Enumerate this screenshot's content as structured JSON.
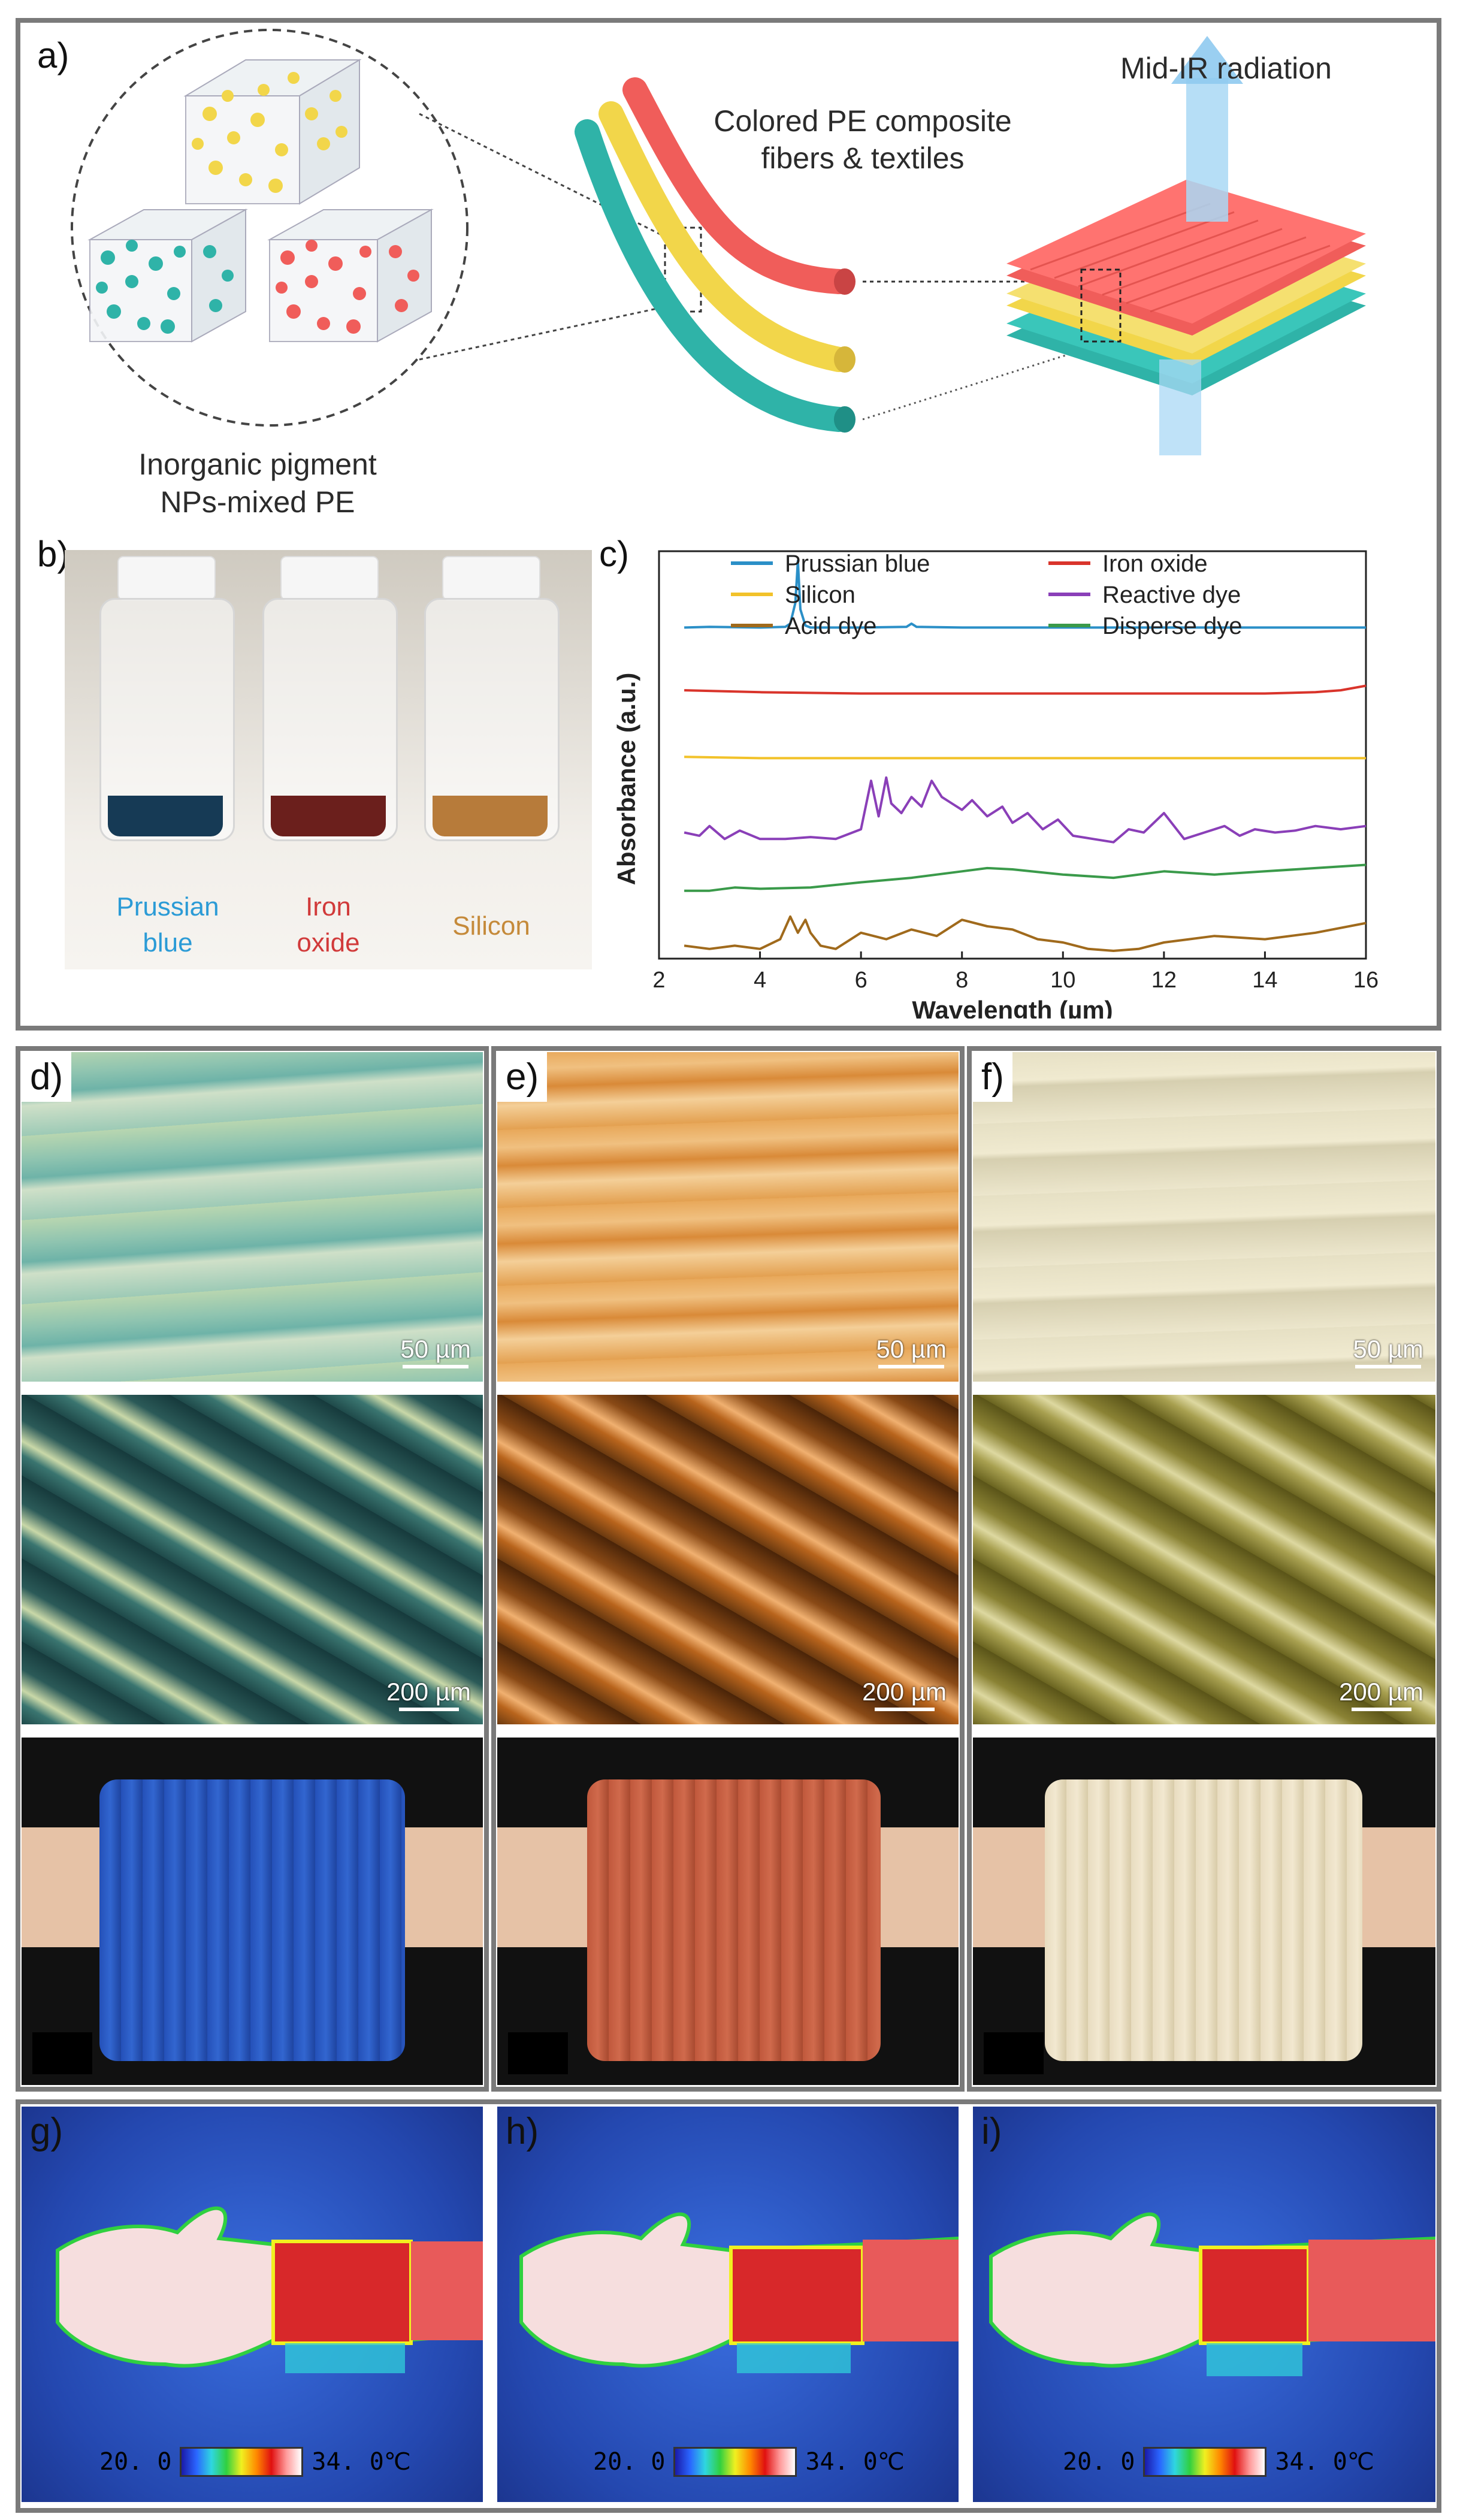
{
  "figure": {
    "panel_labels": [
      "a)",
      "b)",
      "c)",
      "d)",
      "e)",
      "f)",
      "g)",
      "h)",
      "i)"
    ],
    "panel_a": {
      "left_caption": [
        "Inorganic pigment",
        "NPs-mixed PE"
      ],
      "middle_caption": [
        "Colored PE composite",
        "fibers & textiles"
      ],
      "right_caption": "Mid-IR radiation",
      "colors": {
        "yellow": "#f2d64a",
        "teal": "#2fb3a8",
        "red": "#f05d5a"
      }
    },
    "panel_b": {
      "jars": [
        {
          "label": [
            "Prussian",
            "blue"
          ],
          "color": "#2b9bd6",
          "powder": "#163a55"
        },
        {
          "label": [
            "Iron",
            "oxide"
          ],
          "color": "#d13a3a",
          "powder": "#6b1f1c"
        },
        {
          "label": [
            "Silicon"
          ],
          "color": "#c58a3a",
          "powder": "#b77b3a"
        }
      ]
    },
    "scale_labels": {
      "micro": "50 µm",
      "macro": "200 µm"
    },
    "thermal": {
      "min_label": "20. 0",
      "max_label": "34. 0℃"
    }
  },
  "chart_data": {
    "type": "line",
    "title": "",
    "xlabel": "Wavelength (µm)",
    "ylabel": "Absorbance (a.u.)",
    "xlim": [
      2,
      16
    ],
    "x_ticks": [
      2,
      4,
      6,
      8,
      10,
      12,
      14,
      16
    ],
    "y_ticks_shown": false,
    "legend_placement": "top",
    "series": [
      {
        "name": "Prussian blue",
        "color": "#2a8fc7",
        "offset": 5.0,
        "x": [
          2.5,
          3.0,
          4.0,
          4.5,
          4.6,
          4.7,
          4.75,
          4.8,
          4.9,
          5.0,
          6.0,
          6.9,
          7.0,
          7.1,
          8,
          10,
          12,
          14,
          16
        ],
        "y": [
          0.02,
          0.03,
          0.02,
          0.03,
          0.08,
          0.4,
          1.05,
          0.3,
          0.05,
          0.02,
          0.02,
          0.03,
          0.08,
          0.03,
          0.02,
          0.02,
          0.02,
          0.02,
          0.02
        ]
      },
      {
        "name": "Iron oxide",
        "color": "#d9342b",
        "offset": 4.0,
        "x": [
          2.5,
          4,
          6,
          8,
          10,
          12,
          14,
          15,
          15.5,
          16
        ],
        "y": [
          0.05,
          0.02,
          0.0,
          0.0,
          0.0,
          0.0,
          0.0,
          0.02,
          0.05,
          0.12
        ]
      },
      {
        "name": "Silicon",
        "color": "#f2c22a",
        "offset": 3.0,
        "x": [
          2.5,
          4,
          6,
          8,
          10,
          12,
          14,
          16
        ],
        "y": [
          0.02,
          0.0,
          0.0,
          0.0,
          0.0,
          0.0,
          0.0,
          0.0
        ]
      },
      {
        "name": "Reactive dye",
        "color": "#8a3fb8",
        "offset": 1.7,
        "x": [
          2.5,
          2.8,
          3.0,
          3.3,
          3.6,
          4.0,
          4.5,
          5.0,
          5.5,
          6.0,
          6.2,
          6.35,
          6.5,
          6.6,
          6.8,
          7.0,
          7.2,
          7.4,
          7.6,
          7.8,
          8.0,
          8.2,
          8.5,
          8.8,
          9.0,
          9.3,
          9.6,
          9.9,
          10.2,
          10.6,
          11.0,
          11.3,
          11.6,
          12.0,
          12.4,
          12.8,
          13.2,
          13.5,
          13.8,
          14.2,
          14.6,
          15.0,
          15.5,
          16
        ],
        "y": [
          0.15,
          0.1,
          0.25,
          0.05,
          0.18,
          0.05,
          0.05,
          0.08,
          0.05,
          0.2,
          0.95,
          0.4,
          1.0,
          0.6,
          0.45,
          0.7,
          0.55,
          0.95,
          0.7,
          0.6,
          0.5,
          0.65,
          0.4,
          0.55,
          0.3,
          0.45,
          0.2,
          0.35,
          0.1,
          0.05,
          0.0,
          0.2,
          0.15,
          0.45,
          0.05,
          0.15,
          0.25,
          0.1,
          0.2,
          0.15,
          0.18,
          0.25,
          0.2,
          0.25
        ]
      },
      {
        "name": "Acid dye",
        "color": "#a06a1c",
        "offset": 0.0,
        "x": [
          2.5,
          3.0,
          3.5,
          4.0,
          4.4,
          4.6,
          4.75,
          4.9,
          5.0,
          5.2,
          5.5,
          6.0,
          6.5,
          7.0,
          7.5,
          8.0,
          8.5,
          9.0,
          9.5,
          10.0,
          10.5,
          11.0,
          11.5,
          12.0,
          12.5,
          13.0,
          14.0,
          15.0,
          16
        ],
        "y": [
          0.1,
          0.05,
          0.1,
          0.05,
          0.2,
          0.55,
          0.3,
          0.5,
          0.3,
          0.1,
          0.05,
          0.3,
          0.2,
          0.35,
          0.25,
          0.5,
          0.4,
          0.35,
          0.2,
          0.15,
          0.05,
          0.02,
          0.05,
          0.15,
          0.2,
          0.25,
          0.2,
          0.3,
          0.45
        ]
      },
      {
        "name": "Disperse dye",
        "color": "#3a9a4a",
        "offset": 0.9,
        "x": [
          2.5,
          3.0,
          3.5,
          4.0,
          5.0,
          6.0,
          7.0,
          8.0,
          8.5,
          9.0,
          10.0,
          11.0,
          12.0,
          13.0,
          14.0,
          15.0,
          16
        ],
        "y": [
          0.05,
          0.05,
          0.1,
          0.08,
          0.1,
          0.18,
          0.25,
          0.35,
          0.4,
          0.38,
          0.3,
          0.25,
          0.35,
          0.3,
          0.35,
          0.4,
          0.45
        ]
      }
    ]
  }
}
